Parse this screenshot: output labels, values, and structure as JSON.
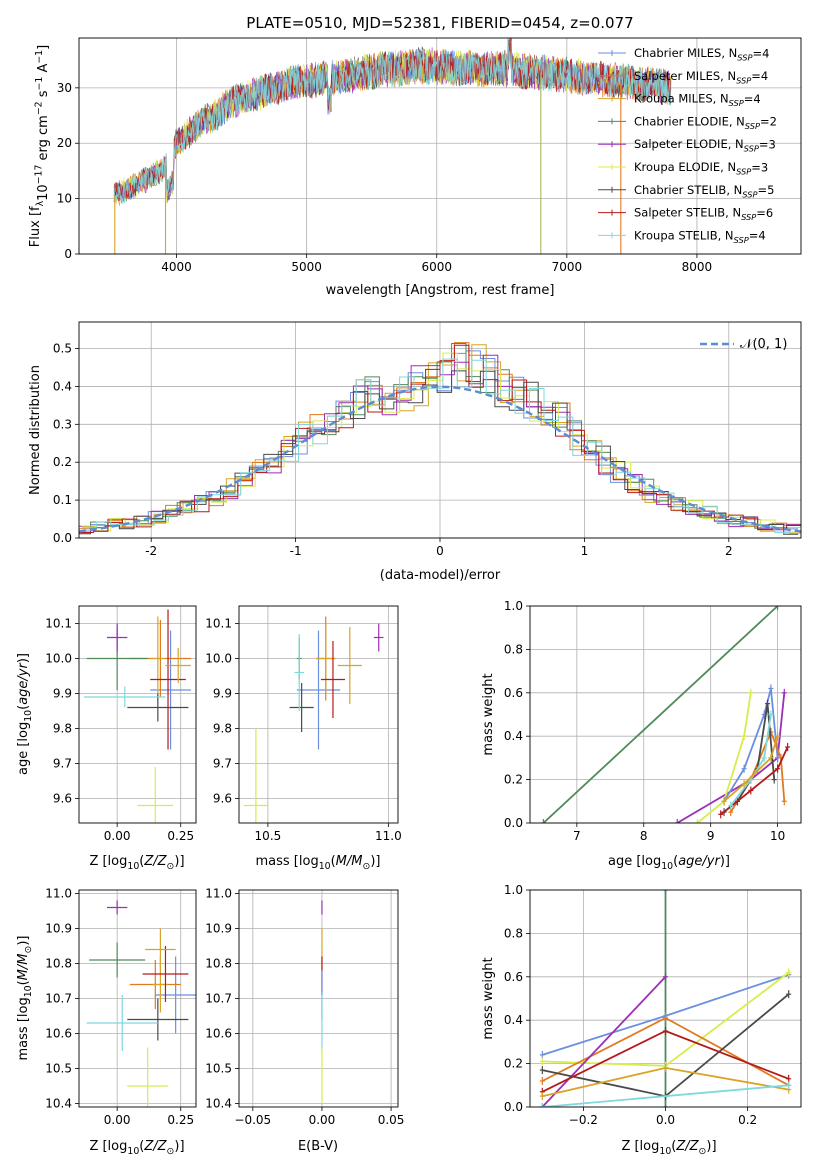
{
  "figure": {
    "title": "PLATE=0510, MJD=52381, FIBERID=0454, z=0.077"
  },
  "models": [
    {
      "name": "Chabrier MILES",
      "color": "#6b8fe0"
    },
    {
      "name": "Salpeter MILES",
      "color": "#e07a1f"
    },
    {
      "name": "Kroupa MILES",
      "color": "#d9a326"
    },
    {
      "name": "Chabrier ELODIE",
      "color": "#4f8a5b"
    },
    {
      "name": "Salpeter ELODIE",
      "color": "#9b2fb5"
    },
    {
      "name": "Kroupa ELODIE",
      "color": "#d8ec4a"
    },
    {
      "name": "Chabrier STELIB",
      "color": "#4a4a4a"
    },
    {
      "name": "Salpeter STELIB",
      "color": "#b51a1a"
    },
    {
      "name": "Kroupa STELIB",
      "color": "#7fd8dc"
    }
  ],
  "chart_data": [
    {
      "id": "spectrum",
      "type": "line",
      "xlabel": "wavelength [Angstrom, rest frame]",
      "ylabel": "Flux [f_λ 10^-17 erg cm^-2 s^-1 A^-1]",
      "xlim": [
        3250,
        8800
      ],
      "ylim": [
        0,
        39
      ],
      "xticks": [
        4000,
        5000,
        6000,
        7000,
        8000
      ],
      "yticks": [
        0,
        10,
        20,
        30
      ],
      "legend_position": "top-right",
      "legend": [
        {
          "label": "Chabrier MILES, N",
          "sub": "SSP",
          "suffix": "=4"
        },
        {
          "label": "Salpeter MILES, N",
          "sub": "SSP",
          "suffix": "=4"
        },
        {
          "label": "Kroupa MILES, N",
          "sub": "SSP",
          "suffix": "=4"
        },
        {
          "label": "Chabrier ELODIE, N",
          "sub": "SSP",
          "suffix": "=2"
        },
        {
          "label": "Salpeter ELODIE, N",
          "sub": "SSP",
          "suffix": "=3"
        },
        {
          "label": "Kroupa ELODIE, N",
          "sub": "SSP",
          "suffix": "=3"
        },
        {
          "label": "Chabrier STELIB, N",
          "sub": "SSP",
          "suffix": "=5"
        },
        {
          "label": "Salpeter STELIB, N",
          "sub": "SSP",
          "suffix": "=6"
        },
        {
          "label": "Kroupa STELIB, N",
          "sub": "SSP",
          "suffix": "=4"
        }
      ],
      "continuum": {
        "x": [
          3520,
          3600,
          3700,
          3800,
          3900,
          3950,
          4000,
          4100,
          4200,
          4300,
          4400,
          4500,
          4700,
          4900,
          5100,
          5300,
          5500,
          5700,
          5900,
          6100,
          6300,
          6500,
          6700,
          6900,
          7100,
          7300,
          7500,
          7700,
          7800
        ],
        "y": [
          10.5,
          11.5,
          12.5,
          14,
          15.5,
          17,
          20,
          22,
          24,
          25,
          27,
          28,
          29.5,
          31,
          31.5,
          32,
          33,
          33.5,
          34,
          33.5,
          33.5,
          33.5,
          33,
          32.5,
          32,
          31.5,
          31,
          30.5,
          30
        ]
      },
      "spikes": [
        {
          "x": 3525,
          "y": 0
        },
        {
          "x": 3915,
          "y": 0
        },
        {
          "x": 6800,
          "y": 0
        },
        {
          "x": 7415,
          "y": 0
        }
      ]
    },
    {
      "id": "residuals",
      "type": "histogram",
      "xlabel": "(data-model)/error",
      "ylabel": "Normed distribution",
      "xlim": [
        -2.5,
        2.5
      ],
      "ylim": [
        0,
        0.57
      ],
      "xticks": [
        -2,
        -1,
        0,
        1,
        2
      ],
      "yticks": [
        0.0,
        0.1,
        0.2,
        0.3,
        0.4,
        0.5
      ],
      "bin_width": 0.1,
      "reference": {
        "label": "𝒩(0, 1)",
        "mean": 0,
        "sigma": 1,
        "style": "dashed",
        "color": "#5b8dd6"
      },
      "legend_position": "top-right",
      "envelope": {
        "x": [
          -2.5,
          -2.0,
          -1.5,
          -1.0,
          -0.8,
          -0.5,
          -0.3,
          0.0,
          0.15,
          0.3,
          0.5,
          0.8,
          1.0,
          1.5,
          2.0,
          2.5
        ],
        "y": [
          0.02,
          0.05,
          0.11,
          0.25,
          0.3,
          0.37,
          0.38,
          0.42,
          0.47,
          0.44,
          0.38,
          0.33,
          0.24,
          0.11,
          0.05,
          0.02
        ]
      }
    },
    {
      "id": "age-Z",
      "type": "errorbar",
      "xlabel": "Z [log10(Z/Z⊙)]",
      "ylabel": "age  [log10(age/yr)]",
      "xlim": [
        -0.15,
        0.31
      ],
      "ylim": [
        9.53,
        10.15
      ],
      "xticks": [
        0.0,
        0.25
      ],
      "xtick_labels": [
        "0.00",
        "0.25"
      ],
      "yticks": [
        9.6,
        9.7,
        9.8,
        9.9,
        10.0,
        10.1
      ],
      "points": [
        {
          "model": 0,
          "x": 0.21,
          "y": 9.91,
          "xerr": 0.08,
          "yerr": 0.17
        },
        {
          "model": 1,
          "x": 0.17,
          "y": 10.0,
          "xerr": 0.12,
          "yerr": 0.11
        },
        {
          "model": 2,
          "x": 0.16,
          "y": 10.0,
          "xerr": 0.03,
          "yerr": 0.12
        },
        {
          "model": 3,
          "x": 0.0,
          "y": 10.0,
          "xerr": 0.12,
          "yerr": 0.09
        },
        {
          "model": 4,
          "x": 0.0,
          "y": 10.06,
          "xerr": 0.04,
          "yerr": 0.04
        },
        {
          "model": 5,
          "x": 0.15,
          "y": 9.58,
          "xerr": 0.07,
          "yerr": 0.11
        },
        {
          "model": 6,
          "x": 0.16,
          "y": 9.86,
          "xerr": 0.12,
          "yerr": 0.04
        },
        {
          "model": 7,
          "x": 0.2,
          "y": 9.94,
          "xerr": 0.07,
          "yerr": 0.2
        },
        {
          "model": 8,
          "x": 0.03,
          "y": 9.89,
          "xerr": 0.16,
          "yerr": 0.03
        },
        {
          "model": 2,
          "x": 0.24,
          "y": 9.98,
          "xerr": 0.05,
          "yerr": 0.05
        }
      ]
    },
    {
      "id": "age-mass",
      "type": "errorbar",
      "xlabel": "mass [log10(M/M⊙)]",
      "ylabel": "",
      "xlim": [
        10.38,
        11.04
      ],
      "ylim": [
        9.53,
        10.15
      ],
      "xticks": [
        10.5,
        11.0
      ],
      "xtick_labels": [
        "10.5",
        "11.0"
      ],
      "yticks": [
        9.6,
        9.7,
        9.8,
        9.9,
        10.0,
        10.1
      ],
      "points": [
        {
          "model": 0,
          "x": 10.71,
          "y": 9.91,
          "xerr": 0.09,
          "yerr": 0.17
        },
        {
          "model": 1,
          "x": 10.74,
          "y": 10.0,
          "xerr": 0.04,
          "yerr": 0.12
        },
        {
          "model": 2,
          "x": 10.74,
          "y": 10.0,
          "xerr": 0.04,
          "yerr": 0.1
        },
        {
          "model": 3,
          "x": 10.63,
          "y": 10.0,
          "xerr": 0.01,
          "yerr": 0.06
        },
        {
          "model": 4,
          "x": 10.96,
          "y": 10.06,
          "xerr": 0.02,
          "yerr": 0.04
        },
        {
          "model": 5,
          "x": 10.45,
          "y": 9.58,
          "xerr": 0.05,
          "yerr": 0.22
        },
        {
          "model": 6,
          "x": 10.64,
          "y": 9.86,
          "xerr": 0.05,
          "yerr": 0.07
        },
        {
          "model": 7,
          "x": 10.77,
          "y": 9.94,
          "xerr": 0.05,
          "yerr": 0.11
        },
        {
          "model": 8,
          "x": 10.63,
          "y": 9.96,
          "xerr": 0.02,
          "yerr": 0.11
        },
        {
          "model": 2,
          "x": 10.84,
          "y": 9.98,
          "xerr": 0.05,
          "yerr": 0.11
        }
      ]
    },
    {
      "id": "weight-age",
      "type": "line",
      "xlabel": "age  [log10(age/yr)]",
      "ylabel": "mass weight",
      "xlim": [
        6.3,
        10.35
      ],
      "ylim": [
        0.0,
        1.0
      ],
      "xticks": [
        7,
        8,
        9,
        10
      ],
      "yticks": [
        0.0,
        0.2,
        0.4,
        0.6,
        0.8,
        1.0
      ],
      "ytick_labels": [
        "0.0",
        "0.2",
        "0.4",
        "0.6",
        "0.8",
        "1.0"
      ],
      "series": [
        {
          "model": 3,
          "x": [
            6.5,
            10.0
          ],
          "y": [
            0.0,
            1.0
          ]
        },
        {
          "model": 4,
          "x": [
            8.5,
            9.6,
            10.0,
            10.1
          ],
          "y": [
            0.0,
            0.2,
            0.3,
            0.6
          ]
        },
        {
          "model": 5,
          "x": [
            8.8,
            9.2,
            9.5,
            9.6
          ],
          "y": [
            0.0,
            0.1,
            0.4,
            0.6
          ]
        },
        {
          "model": 0,
          "x": [
            9.2,
            9.5,
            9.8,
            9.9,
            10.0
          ],
          "y": [
            0.1,
            0.25,
            0.5,
            0.62,
            0.3
          ]
        },
        {
          "model": 1,
          "x": [
            9.3,
            9.6,
            9.9,
            10.05,
            10.1
          ],
          "y": [
            0.05,
            0.2,
            0.42,
            0.3,
            0.1
          ]
        },
        {
          "model": 6,
          "x": [
            9.2,
            9.4,
            9.7,
            9.85,
            9.95
          ],
          "y": [
            0.05,
            0.1,
            0.25,
            0.55,
            0.2
          ]
        },
        {
          "model": 7,
          "x": [
            9.15,
            9.4,
            9.6,
            10.0,
            10.15
          ],
          "y": [
            0.04,
            0.1,
            0.15,
            0.25,
            0.35
          ]
        },
        {
          "model": 8,
          "x": [
            9.3,
            9.6,
            9.8,
            9.9
          ],
          "y": [
            0.08,
            0.2,
            0.3,
            0.5
          ]
        },
        {
          "model": 2,
          "x": [
            9.2,
            9.5,
            9.9,
            10.0
          ],
          "y": [
            0.1,
            0.18,
            0.3,
            0.4
          ]
        }
      ]
    },
    {
      "id": "mass-Z",
      "type": "errorbar",
      "xlabel": "Z [log10(Z/Z⊙)]",
      "ylabel": "mass [log10(M/M⊙)]",
      "xlim": [
        -0.15,
        0.31
      ],
      "ylim": [
        10.39,
        11.01
      ],
      "xticks": [
        0.0,
        0.25
      ],
      "xtick_labels": [
        "0.00",
        "0.25"
      ],
      "yticks": [
        10.4,
        10.5,
        10.6,
        10.7,
        10.8,
        10.9,
        11.0
      ],
      "points": [
        {
          "model": 0,
          "x": 0.23,
          "y": 10.71,
          "xerr": 0.08,
          "yerr": 0.11
        },
        {
          "model": 1,
          "x": 0.15,
          "y": 10.74,
          "xerr": 0.1,
          "yerr": 0.07
        },
        {
          "model": 2,
          "x": 0.17,
          "y": 10.74,
          "xerr": 0.03,
          "yerr": 0.08
        },
        {
          "model": 3,
          "x": 0.0,
          "y": 10.81,
          "xerr": 0.11,
          "yerr": 0.05
        },
        {
          "model": 4,
          "x": 0.0,
          "y": 10.96,
          "xerr": 0.04,
          "yerr": 0.02
        },
        {
          "model": 5,
          "x": 0.12,
          "y": 10.45,
          "xerr": 0.08,
          "yerr": 0.11
        },
        {
          "model": 6,
          "x": 0.16,
          "y": 10.64,
          "xerr": 0.12,
          "yerr": 0.06
        },
        {
          "model": 7,
          "x": 0.19,
          "y": 10.77,
          "xerr": 0.09,
          "yerr": 0.08
        },
        {
          "model": 8,
          "x": 0.02,
          "y": 10.63,
          "xerr": 0.14,
          "yerr": 0.08
        },
        {
          "model": 2,
          "x": 0.17,
          "y": 10.84,
          "xerr": 0.06,
          "yerr": 0.06
        }
      ]
    },
    {
      "id": "mass-ebv",
      "type": "errorbar",
      "xlabel": "E(B-V)",
      "ylabel": "",
      "xlim": [
        -0.06,
        0.055
      ],
      "ylim": [
        10.39,
        11.01
      ],
      "xticks": [
        -0.05,
        0.0,
        0.05
      ],
      "xtick_labels": [
        "−0.05",
        "0.00",
        "0.05"
      ],
      "yticks": [
        10.4,
        10.5,
        10.6,
        10.7,
        10.8,
        10.9,
        11.0
      ],
      "points": [
        {
          "model": 4,
          "x": 0.0,
          "y": 10.96,
          "xerr": 0.0,
          "yerr": 0.02
        },
        {
          "model": 2,
          "x": 0.0,
          "y": 10.84,
          "xerr": 0.0,
          "yerr": 0.06
        },
        {
          "model": 7,
          "x": 0.0,
          "y": 10.77,
          "xerr": 0.0,
          "yerr": 0.05
        },
        {
          "model": 0,
          "x": 0.0,
          "y": 10.71,
          "xerr": 0.0,
          "yerr": 0.07
        },
        {
          "model": 8,
          "x": 0.0,
          "y": 10.63,
          "xerr": 0.0,
          "yerr": 0.08
        },
        {
          "model": 5,
          "x": 0.0,
          "y": 10.48,
          "xerr": 0.0,
          "yerr": 0.08
        }
      ]
    },
    {
      "id": "weight-Z",
      "type": "line",
      "xlabel": "Z [log10(Z/Z⊙)]",
      "ylabel": "mass weight",
      "xlim": [
        -0.33,
        0.33
      ],
      "ylim": [
        0.0,
        1.0
      ],
      "xticks": [
        -0.2,
        0.0,
        0.2
      ],
      "xtick_labels": [
        "−0.2",
        "0.0",
        "0.2"
      ],
      "yticks": [
        0.0,
        0.2,
        0.4,
        0.6,
        0.8,
        1.0
      ],
      "ytick_labels": [
        "0.0",
        "0.2",
        "0.4",
        "0.6",
        "0.8",
        "1.0"
      ],
      "series": [
        {
          "model": 3,
          "x": [
            0.0,
            0.0
          ],
          "y": [
            0.0,
            1.0
          ]
        },
        {
          "model": 0,
          "x": [
            -0.3,
            0.0,
            0.3
          ],
          "y": [
            0.24,
            0.42,
            0.61
          ]
        },
        {
          "model": 5,
          "x": [
            -0.3,
            0.0,
            0.3
          ],
          "y": [
            0.21,
            0.19,
            0.62
          ]
        },
        {
          "model": 1,
          "x": [
            -0.3,
            0.0,
            0.3
          ],
          "y": [
            0.12,
            0.41,
            0.1
          ]
        },
        {
          "model": 4,
          "x": [
            -0.3,
            0.0
          ],
          "y": [
            0.0,
            0.6
          ]
        },
        {
          "model": 6,
          "x": [
            -0.3,
            0.0,
            0.3
          ],
          "y": [
            0.17,
            0.05,
            0.52
          ]
        },
        {
          "model": 7,
          "x": [
            -0.3,
            0.0,
            0.3
          ],
          "y": [
            0.07,
            0.35,
            0.13
          ]
        },
        {
          "model": 2,
          "x": [
            -0.3,
            0.0,
            0.3
          ],
          "y": [
            0.05,
            0.18,
            0.08
          ]
        },
        {
          "model": 8,
          "x": [
            -0.3,
            0.3
          ],
          "y": [
            0.0,
            0.1
          ]
        }
      ]
    }
  ]
}
